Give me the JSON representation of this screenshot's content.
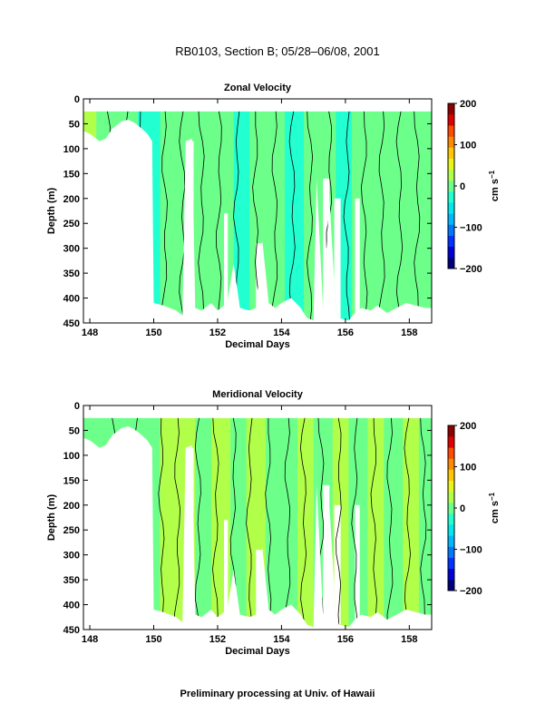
{
  "page": {
    "title": "RB0103, Section B; 05/28–06/08, 2001",
    "footer": "Preliminary processing at Univ. of Hawaii"
  },
  "chart_data": [
    {
      "type": "heatmap",
      "title": "Zonal Velocity",
      "xlabel": "Decimal Days",
      "ylabel": "Depth (m)",
      "xlim": [
        147.8,
        158.7
      ],
      "ylim": [
        0,
        450
      ],
      "y_inverted": true,
      "x_ticks": [
        148,
        150,
        152,
        154,
        156,
        158
      ],
      "y_ticks": [
        0,
        50,
        100,
        150,
        200,
        250,
        300,
        350,
        400,
        450
      ],
      "colorbar": {
        "label": "cm s",
        "label_sup": "−1",
        "range": [
          -200,
          200
        ],
        "ticks": [
          200,
          100,
          0,
          -100,
          -200
        ],
        "tick_labels": [
          "200",
          "100",
          "0",
          "−100",
          "−200"
        ]
      },
      "data_top_depth": 25,
      "bottom_profile": [
        [
          147.8,
          65
        ],
        [
          148.0,
          70
        ],
        [
          148.3,
          85
        ],
        [
          148.5,
          80
        ],
        [
          148.7,
          60
        ],
        [
          149.0,
          45
        ],
        [
          149.2,
          42
        ],
        [
          149.4,
          48
        ],
        [
          149.6,
          58
        ],
        [
          149.8,
          70
        ],
        [
          149.95,
          85
        ],
        [
          150.0,
          410
        ],
        [
          150.3,
          415
        ],
        [
          150.5,
          420
        ],
        [
          150.7,
          425
        ],
        [
          150.9,
          435
        ],
        [
          151.0,
          85
        ],
        [
          151.2,
          80
        ],
        [
          151.3,
          420
        ],
        [
          151.5,
          425
        ],
        [
          151.8,
          410
        ],
        [
          152.0,
          425
        ],
        [
          152.3,
          410
        ],
        [
          152.5,
          330
        ],
        [
          152.7,
          420
        ],
        [
          153.0,
          425
        ],
        [
          153.2,
          420
        ],
        [
          153.4,
          285
        ],
        [
          153.6,
          410
        ],
        [
          153.8,
          420
        ],
        [
          154.0,
          410
        ],
        [
          154.3,
          400
        ],
        [
          154.6,
          420
        ],
        [
          154.8,
          440
        ],
        [
          155.0,
          445
        ],
        [
          155.1,
          160
        ],
        [
          155.3,
          420
        ],
        [
          155.5,
          200
        ],
        [
          155.7,
          420
        ],
        [
          155.8,
          440
        ],
        [
          156.1,
          445
        ],
        [
          156.3,
          430
        ],
        [
          156.5,
          420
        ],
        [
          156.8,
          425
        ],
        [
          157.0,
          415
        ],
        [
          157.3,
          430
        ],
        [
          157.6,
          420
        ],
        [
          157.9,
          410
        ],
        [
          158.2,
          415
        ],
        [
          158.5,
          420
        ],
        [
          158.7,
          420
        ]
      ],
      "gaps": [
        {
          "x": [
            151.05,
            151.25
          ],
          "depth": [
            85,
            450
          ]
        },
        {
          "x": [
            152.2,
            152.32
          ],
          "depth": [
            230,
            450
          ]
        },
        {
          "x": [
            153.2,
            153.4
          ],
          "depth": [
            290,
            450
          ]
        },
        {
          "x": [
            155.3,
            155.5
          ],
          "depth": [
            160,
            450
          ]
        },
        {
          "x": [
            155.65,
            155.85
          ],
          "depth": [
            200,
            450
          ]
        },
        {
          "x": [
            156.3,
            156.45
          ],
          "depth": [
            200,
            450
          ]
        }
      ],
      "columns": [
        {
          "x": [
            147.8,
            148.2
          ],
          "value": 20
        },
        {
          "x": [
            148.2,
            148.6
          ],
          "value": 10
        },
        {
          "x": [
            148.6,
            149.0
          ],
          "value": 0
        },
        {
          "x": [
            149.0,
            149.5
          ],
          "value": -5
        },
        {
          "x": [
            149.5,
            150.2
          ],
          "value": -20
        },
        {
          "x": [
            150.2,
            150.8
          ],
          "value": -10
        },
        {
          "x": [
            150.8,
            151.3
          ],
          "value": 5
        },
        {
          "x": [
            151.3,
            151.7
          ],
          "value": 10
        },
        {
          "x": [
            151.7,
            152.1
          ],
          "value": -10
        },
        {
          "x": [
            152.1,
            152.5
          ],
          "value": 0
        },
        {
          "x": [
            152.5,
            153.0
          ],
          "value": -20
        },
        {
          "x": [
            153.0,
            153.6
          ],
          "value": 0
        },
        {
          "x": [
            153.6,
            154.1
          ],
          "value": 5
        },
        {
          "x": [
            154.1,
            154.7
          ],
          "value": -15
        },
        {
          "x": [
            154.7,
            155.2
          ],
          "value": 5
        },
        {
          "x": [
            155.2,
            155.7
          ],
          "value": 0
        },
        {
          "x": [
            155.7,
            156.2
          ],
          "value": -20
        },
        {
          "x": [
            156.2,
            156.8
          ],
          "value": 5
        },
        {
          "x": [
            156.8,
            157.3
          ],
          "value": -10
        },
        {
          "x": [
            157.3,
            157.8
          ],
          "value": 10
        },
        {
          "x": [
            157.8,
            158.3
          ],
          "value": 0
        },
        {
          "x": [
            158.3,
            158.7
          ],
          "value": -10
        }
      ],
      "contours_x": [
        148.55,
        149.1,
        149.6,
        150.35,
        150.9,
        151.5,
        152.05,
        152.6,
        153.2,
        153.8,
        154.35,
        154.9,
        155.5,
        156.05,
        156.6,
        157.15,
        157.7,
        158.25
      ]
    },
    {
      "type": "heatmap",
      "title": "Meridional Velocity",
      "xlabel": "Decimal Days",
      "ylabel": "Depth (m)",
      "xlim": [
        147.8,
        158.7
      ],
      "ylim": [
        0,
        450
      ],
      "y_inverted": true,
      "x_ticks": [
        148,
        150,
        152,
        154,
        156,
        158
      ],
      "y_ticks": [
        0,
        50,
        100,
        150,
        200,
        250,
        300,
        350,
        400,
        450
      ],
      "colorbar": {
        "label": "cm s",
        "label_sup": "−1",
        "range": [
          -200,
          200
        ],
        "ticks": [
          200,
          100,
          0,
          -100,
          -200
        ],
        "tick_labels": [
          "200",
          "100",
          "0",
          "−100",
          "−200"
        ]
      },
      "data_top_depth": 25,
      "bottom_profile": [
        [
          147.8,
          65
        ],
        [
          148.0,
          70
        ],
        [
          148.3,
          85
        ],
        [
          148.5,
          80
        ],
        [
          148.7,
          60
        ],
        [
          149.0,
          45
        ],
        [
          149.2,
          42
        ],
        [
          149.4,
          48
        ],
        [
          149.6,
          58
        ],
        [
          149.8,
          70
        ],
        [
          149.95,
          85
        ],
        [
          150.0,
          410
        ],
        [
          150.3,
          415
        ],
        [
          150.5,
          420
        ],
        [
          150.7,
          425
        ],
        [
          150.9,
          435
        ],
        [
          151.0,
          85
        ],
        [
          151.2,
          80
        ],
        [
          151.3,
          420
        ],
        [
          151.5,
          425
        ],
        [
          151.8,
          410
        ],
        [
          152.0,
          425
        ],
        [
          152.3,
          410
        ],
        [
          152.5,
          330
        ],
        [
          152.7,
          420
        ],
        [
          153.0,
          425
        ],
        [
          153.2,
          420
        ],
        [
          153.4,
          285
        ],
        [
          153.6,
          410
        ],
        [
          153.8,
          420
        ],
        [
          154.0,
          410
        ],
        [
          154.3,
          400
        ],
        [
          154.6,
          420
        ],
        [
          154.8,
          440
        ],
        [
          155.0,
          445
        ],
        [
          155.1,
          160
        ],
        [
          155.3,
          420
        ],
        [
          155.5,
          200
        ],
        [
          155.7,
          420
        ],
        [
          155.8,
          440
        ],
        [
          156.1,
          445
        ],
        [
          156.3,
          430
        ],
        [
          156.5,
          420
        ],
        [
          156.8,
          425
        ],
        [
          157.0,
          415
        ],
        [
          157.3,
          430
        ],
        [
          157.6,
          420
        ],
        [
          157.9,
          410
        ],
        [
          158.2,
          415
        ],
        [
          158.5,
          420
        ],
        [
          158.7,
          420
        ]
      ],
      "gaps": [
        {
          "x": [
            151.05,
            151.25
          ],
          "depth": [
            85,
            450
          ]
        },
        {
          "x": [
            152.2,
            152.32
          ],
          "depth": [
            230,
            450
          ]
        },
        {
          "x": [
            153.2,
            153.4
          ],
          "depth": [
            290,
            450
          ]
        },
        {
          "x": [
            155.3,
            155.5
          ],
          "depth": [
            160,
            450
          ]
        },
        {
          "x": [
            155.65,
            155.85
          ],
          "depth": [
            200,
            450
          ]
        },
        {
          "x": [
            156.3,
            156.45
          ],
          "depth": [
            200,
            450
          ]
        }
      ],
      "columns": [
        {
          "x": [
            147.8,
            148.3
          ],
          "value": -10
        },
        {
          "x": [
            148.3,
            149.0
          ],
          "value": 5
        },
        {
          "x": [
            149.0,
            149.6
          ],
          "value": 0
        },
        {
          "x": [
            149.6,
            150.2
          ],
          "value": 10
        },
        {
          "x": [
            150.2,
            150.7
          ],
          "value": 15
        },
        {
          "x": [
            150.7,
            151.3
          ],
          "value": 20
        },
        {
          "x": [
            151.3,
            151.8
          ],
          "value": 5
        },
        {
          "x": [
            151.8,
            152.4
          ],
          "value": 15
        },
        {
          "x": [
            152.4,
            152.9
          ],
          "value": 5
        },
        {
          "x": [
            152.9,
            153.5
          ],
          "value": 20
        },
        {
          "x": [
            153.5,
            154.0
          ],
          "value": 10
        },
        {
          "x": [
            154.0,
            154.5
          ],
          "value": 5
        },
        {
          "x": [
            154.5,
            155.0
          ],
          "value": 20
        },
        {
          "x": [
            155.0,
            155.6
          ],
          "value": 10
        },
        {
          "x": [
            155.6,
            156.1
          ],
          "value": 30
        },
        {
          "x": [
            156.1,
            156.7
          ],
          "value": 5
        },
        {
          "x": [
            156.7,
            157.2
          ],
          "value": 15
        },
        {
          "x": [
            157.2,
            157.8
          ],
          "value": 0
        },
        {
          "x": [
            157.8,
            158.3
          ],
          "value": 25
        },
        {
          "x": [
            158.3,
            158.7
          ],
          "value": 10
        }
      ],
      "contours_x": [
        148.7,
        149.4,
        150.25,
        150.75,
        151.4,
        151.95,
        152.5,
        153.0,
        153.6,
        154.2,
        154.7,
        155.25,
        155.8,
        156.3,
        156.9,
        157.4,
        157.95,
        158.45
      ]
    }
  ]
}
